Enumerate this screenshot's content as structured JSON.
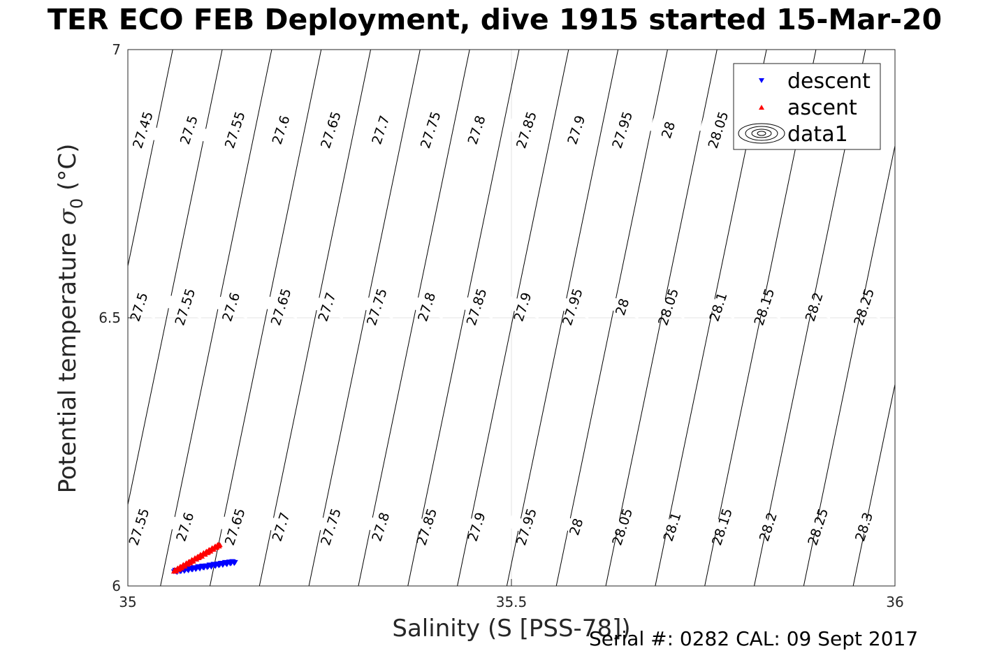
{
  "title": "TER ECO FEB Deployment, dive 1915 started 15-Mar-20",
  "footer": "Serial #: 0282  CAL: 09 Sept 2017",
  "chart_data": {
    "type": "scatter",
    "title": "TER ECO FEB Deployment, dive 1915 started 15-Mar-20",
    "xlabel": "Salinity (S [PSS-78])",
    "ylabel_main": "Potential temperature ",
    "ylabel_sigma": "σ",
    "ylabel_sub": "0",
    "ylabel_unit": " (°C)",
    "xlim": [
      35,
      36
    ],
    "ylim": [
      6,
      7
    ],
    "xticks": [
      35,
      35.5,
      36
    ],
    "xtick_labels": [
      "35",
      "35.5",
      "36"
    ],
    "yticks": [
      6,
      6.5,
      7
    ],
    "ytick_labels": [
      "6",
      "6.5",
      "7"
    ],
    "grid": "major",
    "legend_position": "top-right",
    "series": [
      {
        "name": "descent",
        "marker": "triangle-down",
        "color": "#0000ff",
        "x_range": [
          35.06,
          35.14
        ],
        "y_range": [
          6.027,
          6.045
        ]
      },
      {
        "name": "ascent",
        "marker": "triangle-up",
        "color": "#ff0000",
        "x_range": [
          35.06,
          35.12
        ],
        "y_range": [
          6.027,
          6.077
        ]
      },
      {
        "name": "data1",
        "marker": "contour",
        "color": "#000000"
      }
    ],
    "isopycnals": {
      "top": {
        "y": 6.85,
        "levels": [
          "27.45",
          "27.5",
          "27.55",
          "27.6",
          "27.65",
          "27.7",
          "27.75",
          "27.8",
          "27.85",
          "27.9",
          "27.95",
          "28",
          "28.05"
        ],
        "x": [
          35.02,
          35.08,
          35.14,
          35.2,
          35.265,
          35.33,
          35.395,
          35.455,
          35.52,
          35.585,
          35.645,
          35.705,
          35.77
        ]
      },
      "mid": {
        "y": 6.52,
        "levels": [
          "27.5",
          "27.55",
          "27.6",
          "27.65",
          "27.7",
          "27.75",
          "27.8",
          "27.85",
          "27.9",
          "27.95",
          "28",
          "28.05",
          "28.1",
          "28.15",
          "28.2",
          "28.25"
        ],
        "x": [
          35.015,
          35.075,
          35.135,
          35.2,
          35.26,
          35.325,
          35.39,
          35.455,
          35.515,
          35.58,
          35.645,
          35.705,
          35.77,
          35.83,
          35.895,
          35.96
        ]
      },
      "bottom": {
        "y": 6.11,
        "levels": [
          "27.55",
          "27.6",
          "27.65",
          "27.7",
          "27.75",
          "27.8",
          "27.85",
          "27.9",
          "27.95",
          "28",
          "28.05",
          "28.1",
          "28.15",
          "28.2",
          "28.25",
          "28.3"
        ],
        "x": [
          35.015,
          35.075,
          35.14,
          35.2,
          35.265,
          35.33,
          35.39,
          35.455,
          35.52,
          35.585,
          35.645,
          35.71,
          35.775,
          35.835,
          35.9,
          35.96
        ]
      }
    }
  }
}
